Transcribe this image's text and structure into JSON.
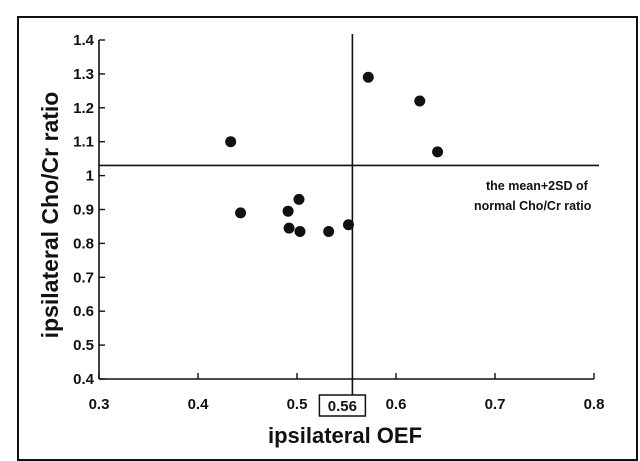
{
  "chart_data": {
    "type": "scatter",
    "xlabel": "ipsilateral OEF",
    "ylabel": "ipsilateral Cho/Cr ratio",
    "xlim": [
      0.3,
      0.8
    ],
    "ylim": [
      0.4,
      1.4
    ],
    "x_ticks": [
      "0.3",
      "0.4",
      "0.5",
      "0.6",
      "0.7",
      "0.8"
    ],
    "y_ticks": [
      "0.4",
      "0.5",
      "0.6",
      "0.7",
      "0.8",
      "0.9",
      "1",
      "1.1",
      "1.2",
      "1.3",
      "1.4"
    ],
    "points": [
      {
        "x": 0.433,
        "y": 1.1
      },
      {
        "x": 0.443,
        "y": 0.89
      },
      {
        "x": 0.491,
        "y": 0.895
      },
      {
        "x": 0.492,
        "y": 0.845
      },
      {
        "x": 0.502,
        "y": 0.93
      },
      {
        "x": 0.503,
        "y": 0.835
      },
      {
        "x": 0.532,
        "y": 0.835
      },
      {
        "x": 0.552,
        "y": 0.855
      },
      {
        "x": 0.572,
        "y": 1.29
      },
      {
        "x": 0.624,
        "y": 1.22
      },
      {
        "x": 0.642,
        "y": 1.07
      }
    ],
    "reference_lines": {
      "vertical_x": 0.56,
      "vertical_label": "0.56",
      "horizontal_y": 1.03,
      "horizontal_label_lines": [
        "the mean+2SD of",
        "normal Cho/Cr ratio"
      ]
    },
    "grid": false,
    "marker_color": "#111111"
  }
}
